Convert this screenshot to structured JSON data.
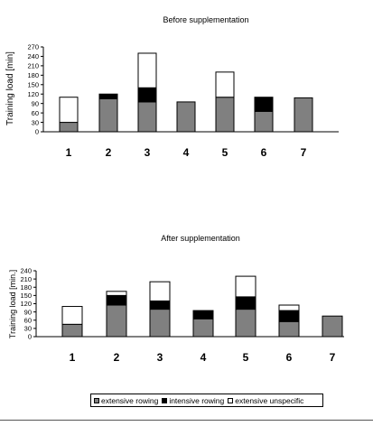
{
  "chart_data": [
    {
      "type": "bar",
      "stacked": true,
      "title": "Before supplementation",
      "xlabel": "",
      "ylabel": "Training load [min]",
      "categories": [
        "1",
        "2",
        "3",
        "4",
        "5",
        "6",
        "7"
      ],
      "yticks": [
        "0",
        "30",
        "60",
        "90",
        "120",
        "150",
        "180",
        "210",
        "240",
        "270"
      ],
      "ylim": [
        0,
        270
      ],
      "series": [
        {
          "name": "extensive rowing",
          "color": "#808080",
          "values": [
            30,
            105,
            95,
            95,
            110,
            65,
            108
          ]
        },
        {
          "name": "intensive rowing",
          "color": "#000000",
          "values": [
            0,
            15,
            45,
            0,
            0,
            45,
            0
          ]
        },
        {
          "name": "extensive unspecific",
          "color": "#ffffff",
          "values": [
            80,
            0,
            110,
            0,
            80,
            0,
            0
          ]
        }
      ]
    },
    {
      "type": "bar",
      "stacked": true,
      "title": "After supplementation",
      "xlabel": "",
      "ylabel": "Training load [min.]",
      "categories": [
        "1",
        "2",
        "3",
        "4",
        "5",
        "6",
        "7"
      ],
      "yticks": [
        "0",
        "30",
        "60",
        "90",
        "120",
        "150",
        "180",
        "210",
        "240"
      ],
      "ylim": [
        0,
        240
      ],
      "series": [
        {
          "name": "extensive rowing",
          "color": "#808080",
          "values": [
            45,
            115,
            100,
            65,
            100,
            55,
            75
          ]
        },
        {
          "name": "intensive rowing",
          "color": "#000000",
          "values": [
            0,
            35,
            30,
            30,
            45,
            40,
            0
          ]
        },
        {
          "name": "extensive unspecific",
          "color": "#ffffff",
          "values": [
            65,
            15,
            70,
            0,
            75,
            20,
            0
          ]
        }
      ]
    }
  ],
  "legend": {
    "items": [
      {
        "label": "extensive rowing",
        "color": "#808080"
      },
      {
        "label": "intensive rowing",
        "color": "#000000"
      },
      {
        "label": "extensive unspecific",
        "color": "#ffffff"
      }
    ]
  }
}
